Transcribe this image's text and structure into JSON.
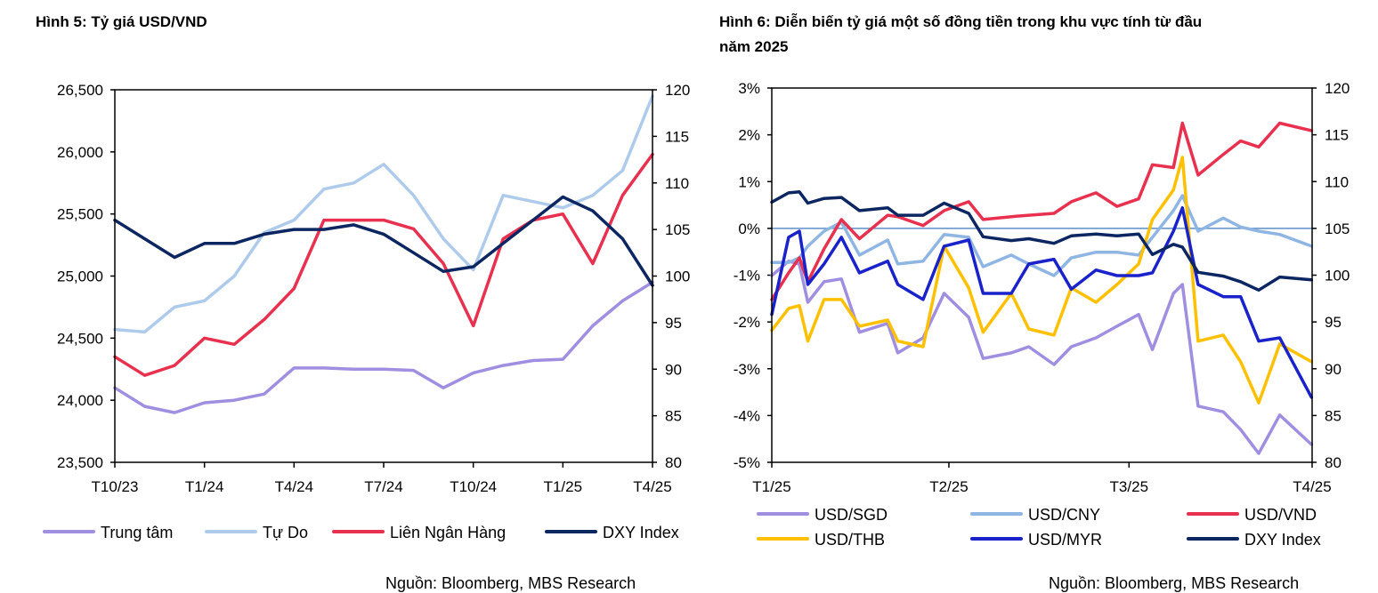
{
  "chart_data": [
    {
      "type": "line",
      "title": "Hình 5: Tỷ giá USD/VND",
      "x": [
        0,
        1,
        2,
        3,
        4,
        5,
        6,
        7,
        8,
        9,
        10,
        11,
        12,
        13,
        14,
        15,
        16,
        17,
        18
      ],
      "xticks": [
        {
          "x": 0,
          "label": "T10/23"
        },
        {
          "x": 3,
          "label": "T1/24"
        },
        {
          "x": 6,
          "label": "T4/24"
        },
        {
          "x": 9,
          "label": "T7/24"
        },
        {
          "x": 12,
          "label": "T10/24"
        },
        {
          "x": 15,
          "label": "T1/25"
        },
        {
          "x": 18,
          "label": "T4/25"
        }
      ],
      "xlim": [
        0,
        18
      ],
      "ylim": [
        23500,
        26500
      ],
      "yticks": [
        "23,500",
        "24,000",
        "24,500",
        "25,000",
        "25,500",
        "26,000",
        "26,500"
      ],
      "y2lim": [
        80,
        120
      ],
      "y2ticks": [
        "80",
        "85",
        "90",
        "95",
        "100",
        "105",
        "110",
        "115",
        "120"
      ],
      "series": [
        {
          "name": "Trung tâm",
          "axis": "left",
          "color": "#a08ee0",
          "values": [
            24100,
            23950,
            23900,
            23980,
            24000,
            24050,
            24260,
            24260,
            24250,
            24250,
            24240,
            24100,
            24220,
            24280,
            24320,
            24330,
            24600,
            24800,
            24950
          ]
        },
        {
          "name": "Tự Do",
          "axis": "left",
          "color": "#aecbeb",
          "values": [
            24570,
            24550,
            24750,
            24800,
            25000,
            25350,
            25450,
            25700,
            25750,
            25900,
            25650,
            25300,
            25050,
            25650,
            25600,
            25550,
            25650,
            25850,
            26450
          ]
        },
        {
          "name": "Liên Ngân Hàng",
          "axis": "left",
          "color": "#e8304f",
          "values": [
            24350,
            24200,
            24280,
            24500,
            24450,
            24650,
            24900,
            25450,
            25450,
            25450,
            25380,
            25100,
            24600,
            25300,
            25450,
            25500,
            25100,
            25650,
            25980
          ]
        },
        {
          "name": "DXY Index",
          "axis": "right",
          "color": "#0c2661",
          "values": [
            106,
            104,
            102,
            103.5,
            103.5,
            104.5,
            105,
            105,
            105.5,
            104.5,
            102.5,
            100.5,
            101,
            103.5,
            106,
            108.5,
            107,
            104,
            99
          ]
        }
      ],
      "source": "Nguồn: Bloomberg, MBS Research"
    },
    {
      "type": "line",
      "title": "Hình 6: Diễn biến tỷ giá một số đồng tiền trong khu vực tính từ đầu",
      "title_line2": "năm 2025",
      "x": [
        0,
        2.8,
        4.6,
        6,
        8.7,
        11.6,
        14.6,
        19.3,
        21,
        25.2,
        28.7,
        32.8,
        35.2,
        39.9,
        42.8,
        47,
        49.9,
        54,
        57.5,
        61.1,
        63.4,
        66.9,
        68.4,
        71,
        75.2,
        78.1,
        81.1,
        84.6,
        89.9
      ],
      "xticks": [
        {
          "x": 0,
          "label": "T1/25"
        },
        {
          "x": 29.5,
          "label": "T2/25"
        },
        {
          "x": 59.5,
          "label": "T3/25"
        },
        {
          "x": 90,
          "label": "T4/25"
        }
      ],
      "xlim": [
        0,
        90
      ],
      "ylim": [
        -5,
        3
      ],
      "yticks": [
        "-5%",
        "-4%",
        "-3%",
        "-2%",
        "-1%",
        "0%",
        "1%",
        "2%",
        "3%"
      ],
      "y2lim": [
        80,
        120
      ],
      "y2ticks": [
        "80",
        "85",
        "90",
        "95",
        "100",
        "105",
        "110",
        "115",
        "120"
      ],
      "series": [
        {
          "name": "USD/SGD",
          "axis": "left",
          "color": "#a08ee0",
          "values": [
            -1.01,
            -0.7,
            -0.76,
            -1.58,
            -1.14,
            -1.08,
            -2.22,
            -2.03,
            -2.66,
            -2.34,
            -1.39,
            -1.9,
            -2.78,
            -2.66,
            -2.53,
            -2.91,
            -2.53,
            -2.34,
            -2.09,
            -1.84,
            -2.59,
            -1.39,
            -1.2,
            -3.8,
            -3.92,
            -4.3,
            -4.81,
            -3.99,
            -4.62
          ]
        },
        {
          "name": "USD/CNY",
          "axis": "left",
          "color": "#8fb6e3",
          "values": [
            -0.73,
            -0.73,
            -0.63,
            -0.38,
            -0.06,
            0.13,
            -0.57,
            -0.25,
            -0.76,
            -0.7,
            -0.13,
            -0.19,
            -0.82,
            -0.57,
            -0.76,
            -1.01,
            -0.63,
            -0.51,
            -0.51,
            -0.57,
            -0.19,
            0.38,
            0.7,
            -0.06,
            0.22,
            0.03,
            -0.06,
            -0.13,
            -0.38
          ]
        },
        {
          "name": "USD/VND",
          "axis": "left",
          "color": "#e8304f",
          "values": [
            -1.52,
            -0.95,
            -0.63,
            -1.14,
            -0.44,
            0.19,
            -0.22,
            0.28,
            0.25,
            0.06,
            0.38,
            0.57,
            0.19,
            0.25,
            0.28,
            0.32,
            0.57,
            0.76,
            0.47,
            0.63,
            1.36,
            1.3,
            2.25,
            1.14,
            1.58,
            1.87,
            1.74,
            2.25,
            2.09
          ]
        },
        {
          "name": "USD/THB",
          "axis": "left",
          "color": "#ffc000",
          "values": [
            -2.18,
            -1.71,
            -1.65,
            -2.41,
            -1.52,
            -1.52,
            -2.09,
            -1.96,
            -2.41,
            -2.53,
            -0.38,
            -1.27,
            -2.22,
            -1.39,
            -2.15,
            -2.28,
            -1.27,
            -1.58,
            -1.2,
            -0.76,
            0.19,
            0.82,
            1.52,
            -2.41,
            -2.28,
            -2.85,
            -3.73,
            -2.47,
            -2.85
          ]
        },
        {
          "name": "USD/MYR",
          "axis": "left",
          "color": "#1a22c9",
          "values": [
            -1.84,
            -0.19,
            -0.06,
            -1.2,
            -0.76,
            -0.19,
            -0.95,
            -0.7,
            -1.2,
            -1.52,
            -0.38,
            -0.25,
            -1.39,
            -1.39,
            -0.76,
            -0.66,
            -1.3,
            -0.89,
            -1.01,
            -1.01,
            -0.95,
            -0.06,
            0.44,
            -1.2,
            -1.46,
            -1.46,
            -2.41,
            -2.34,
            -3.61
          ]
        },
        {
          "name": "DXY Index",
          "axis": "right",
          "color": "#0c2661",
          "values": [
            107.8,
            108.8,
            108.9,
            107.7,
            108.2,
            108.3,
            106.9,
            107.2,
            106.4,
            106.4,
            107.7,
            106.6,
            104.1,
            103.7,
            103.9,
            103.4,
            104.2,
            104.4,
            104.2,
            104.4,
            102.2,
            103.3,
            103.0,
            100.3,
            99.9,
            99.3,
            98.4,
            99.8,
            99.5
          ]
        }
      ],
      "zero_line_color": "#5b8fc7",
      "source": "Nguồn: Bloomberg, MBS Research"
    }
  ]
}
